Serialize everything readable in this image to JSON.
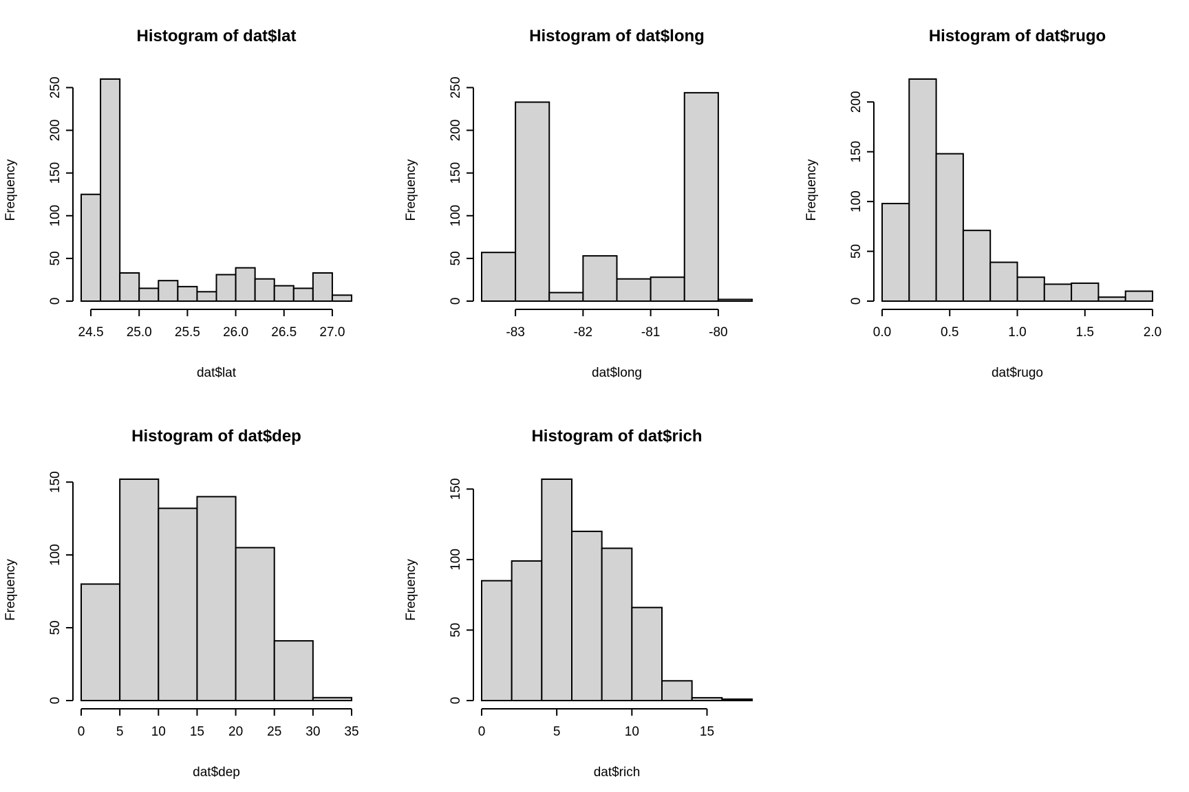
{
  "chart_data": [
    {
      "type": "bar",
      "title": "Histogram of dat$lat",
      "xlabel": "dat$lat",
      "ylabel": "Frequency",
      "bin_edges": [
        24.4,
        24.6,
        24.8,
        25.0,
        25.2,
        25.4,
        25.6,
        25.8,
        26.0,
        26.2,
        26.4,
        26.6,
        26.8,
        27.0,
        27.2
      ],
      "values": [
        125,
        260,
        33,
        15,
        24,
        17,
        11,
        31,
        39,
        26,
        18,
        15,
        33,
        7
      ],
      "x_ticks": [
        24.5,
        25.0,
        25.5,
        26.0,
        26.5,
        27.0
      ],
      "x_tick_labels": [
        "24.5",
        "25.0",
        "25.5",
        "26.0",
        "26.5",
        "27.0"
      ],
      "y_ticks": [
        0,
        50,
        100,
        150,
        200,
        250
      ],
      "y_tick_labels": [
        "0",
        "50",
        "100",
        "150",
        "200",
        "250"
      ]
    },
    {
      "type": "bar",
      "title": "Histogram of dat$long",
      "xlabel": "dat$long",
      "ylabel": "Frequency",
      "bin_edges": [
        -83.5,
        -83.0,
        -82.5,
        -82.0,
        -81.5,
        -81.0,
        -80.5,
        -80.0,
        -79.5
      ],
      "values": [
        57,
        233,
        10,
        53,
        26,
        28,
        244,
        2
      ],
      "x_ticks": [
        -83,
        -82,
        -81,
        -80
      ],
      "x_tick_labels": [
        "-83",
        "-82",
        "-81",
        "-80"
      ],
      "y_ticks": [
        0,
        50,
        100,
        150,
        200,
        250
      ],
      "y_tick_labels": [
        "0",
        "50",
        "100",
        "150",
        "200",
        "250"
      ]
    },
    {
      "type": "bar",
      "title": "Histogram of dat$rugo",
      "xlabel": "dat$rugo",
      "ylabel": "Frequency",
      "bin_edges": [
        0.0,
        0.2,
        0.4,
        0.6,
        0.8,
        1.0,
        1.2,
        1.4,
        1.6,
        1.8,
        2.0
      ],
      "values": [
        98,
        223,
        148,
        71,
        39,
        24,
        17,
        18,
        4,
        10
      ],
      "x_ticks": [
        0.0,
        0.5,
        1.0,
        1.5,
        2.0
      ],
      "x_tick_labels": [
        "0.0",
        "0.5",
        "1.0",
        "1.5",
        "2.0"
      ],
      "y_ticks": [
        0,
        50,
        100,
        150,
        200
      ],
      "y_tick_labels": [
        "0",
        "50",
        "100",
        "150",
        "200"
      ]
    },
    {
      "type": "bar",
      "title": "Histogram of dat$dep",
      "xlabel": "dat$dep",
      "ylabel": "Frequency",
      "bin_edges": [
        0,
        5,
        10,
        15,
        20,
        25,
        30,
        35
      ],
      "values": [
        80,
        152,
        132,
        140,
        105,
        41,
        2
      ],
      "x_ticks": [
        0,
        5,
        10,
        15,
        20,
        25,
        30,
        35
      ],
      "x_tick_labels": [
        "0",
        "5",
        "10",
        "15",
        "20",
        "25",
        "30",
        "35"
      ],
      "y_ticks": [
        0,
        50,
        100,
        150
      ],
      "y_tick_labels": [
        "0",
        "50",
        "100",
        "150"
      ]
    },
    {
      "type": "bar",
      "title": "Histogram of dat$rich",
      "xlabel": "dat$rich",
      "ylabel": "Frequency",
      "bin_edges": [
        0,
        2,
        4,
        6,
        8,
        10,
        12,
        14,
        16,
        18
      ],
      "values": [
        85,
        99,
        157,
        120,
        108,
        66,
        14,
        2,
        1
      ],
      "x_ticks": [
        0,
        5,
        10,
        15
      ],
      "x_tick_labels": [
        "0",
        "5",
        "10",
        "15"
      ],
      "y_ticks": [
        0,
        50,
        100,
        150
      ],
      "y_tick_labels": [
        "0",
        "50",
        "100",
        "150"
      ]
    }
  ]
}
